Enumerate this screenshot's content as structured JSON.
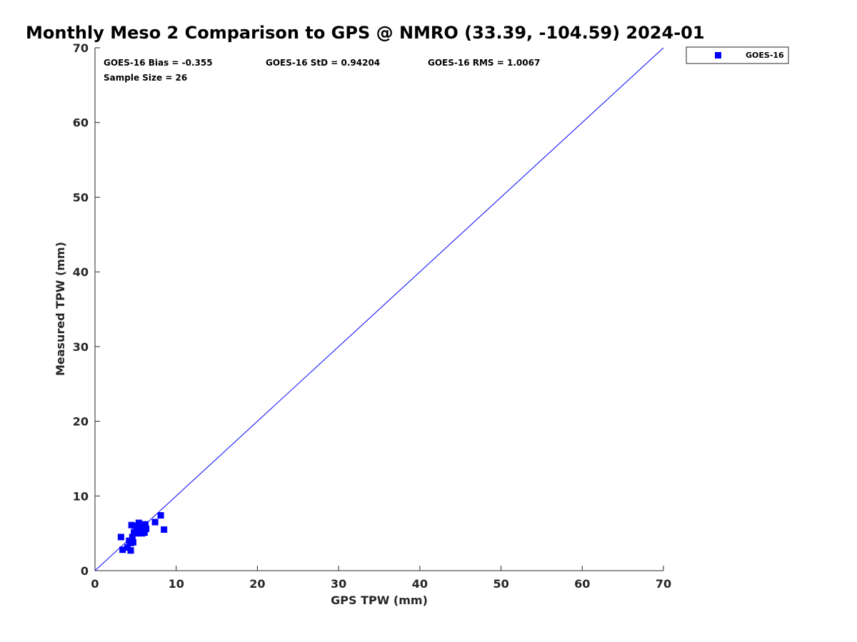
{
  "colors": {
    "series": "#0000ff",
    "axis": "#262626",
    "background": "#ffffff"
  },
  "chart_data": {
    "type": "scatter",
    "title": "Monthly Meso 2 Comparison to GPS @ NMRO (33.39, -104.59) 2024-01",
    "xlabel": "GPS TPW (mm)",
    "ylabel": "Measured TPW (mm)",
    "xlim": [
      0,
      70
    ],
    "ylim": [
      0,
      70
    ],
    "xticks": [
      "0",
      "10",
      "20",
      "30",
      "40",
      "50",
      "60",
      "70"
    ],
    "yticks": [
      "0",
      "10",
      "20",
      "30",
      "40",
      "50",
      "60",
      "70"
    ],
    "grid": false,
    "legend_position": "top-right, outside plot",
    "stats": {
      "bias": "GOES-16 Bias = -0.355",
      "std": "GOES-16 StD = 0.94204",
      "rms": "GOES-16 RMS = 1.0067",
      "sample": "Sample Size = 26"
    },
    "reference_line": {
      "x": [
        0,
        70
      ],
      "y": [
        0,
        70
      ]
    },
    "series": [
      {
        "name": "GOES-16",
        "marker": "square",
        "x": [
          3.2,
          3.4,
          4.0,
          4.2,
          4.4,
          4.5,
          4.7,
          4.6,
          4.9,
          4.8,
          5.1,
          5.3,
          5.4,
          5.2,
          5.6,
          5.8,
          5.7,
          6.0,
          6.1,
          6.2,
          6.3,
          5.5,
          7.4,
          8.1,
          8.5,
          4.4
        ],
        "y": [
          4.5,
          2.8,
          3.1,
          4.0,
          2.7,
          6.1,
          3.8,
          4.5,
          6.0,
          5.1,
          5.0,
          5.6,
          6.4,
          5.2,
          5.9,
          5.0,
          5.3,
          5.9,
          5.1,
          6.2,
          5.6,
          5.2,
          6.5,
          7.4,
          5.5,
          3.7
        ]
      }
    ]
  }
}
